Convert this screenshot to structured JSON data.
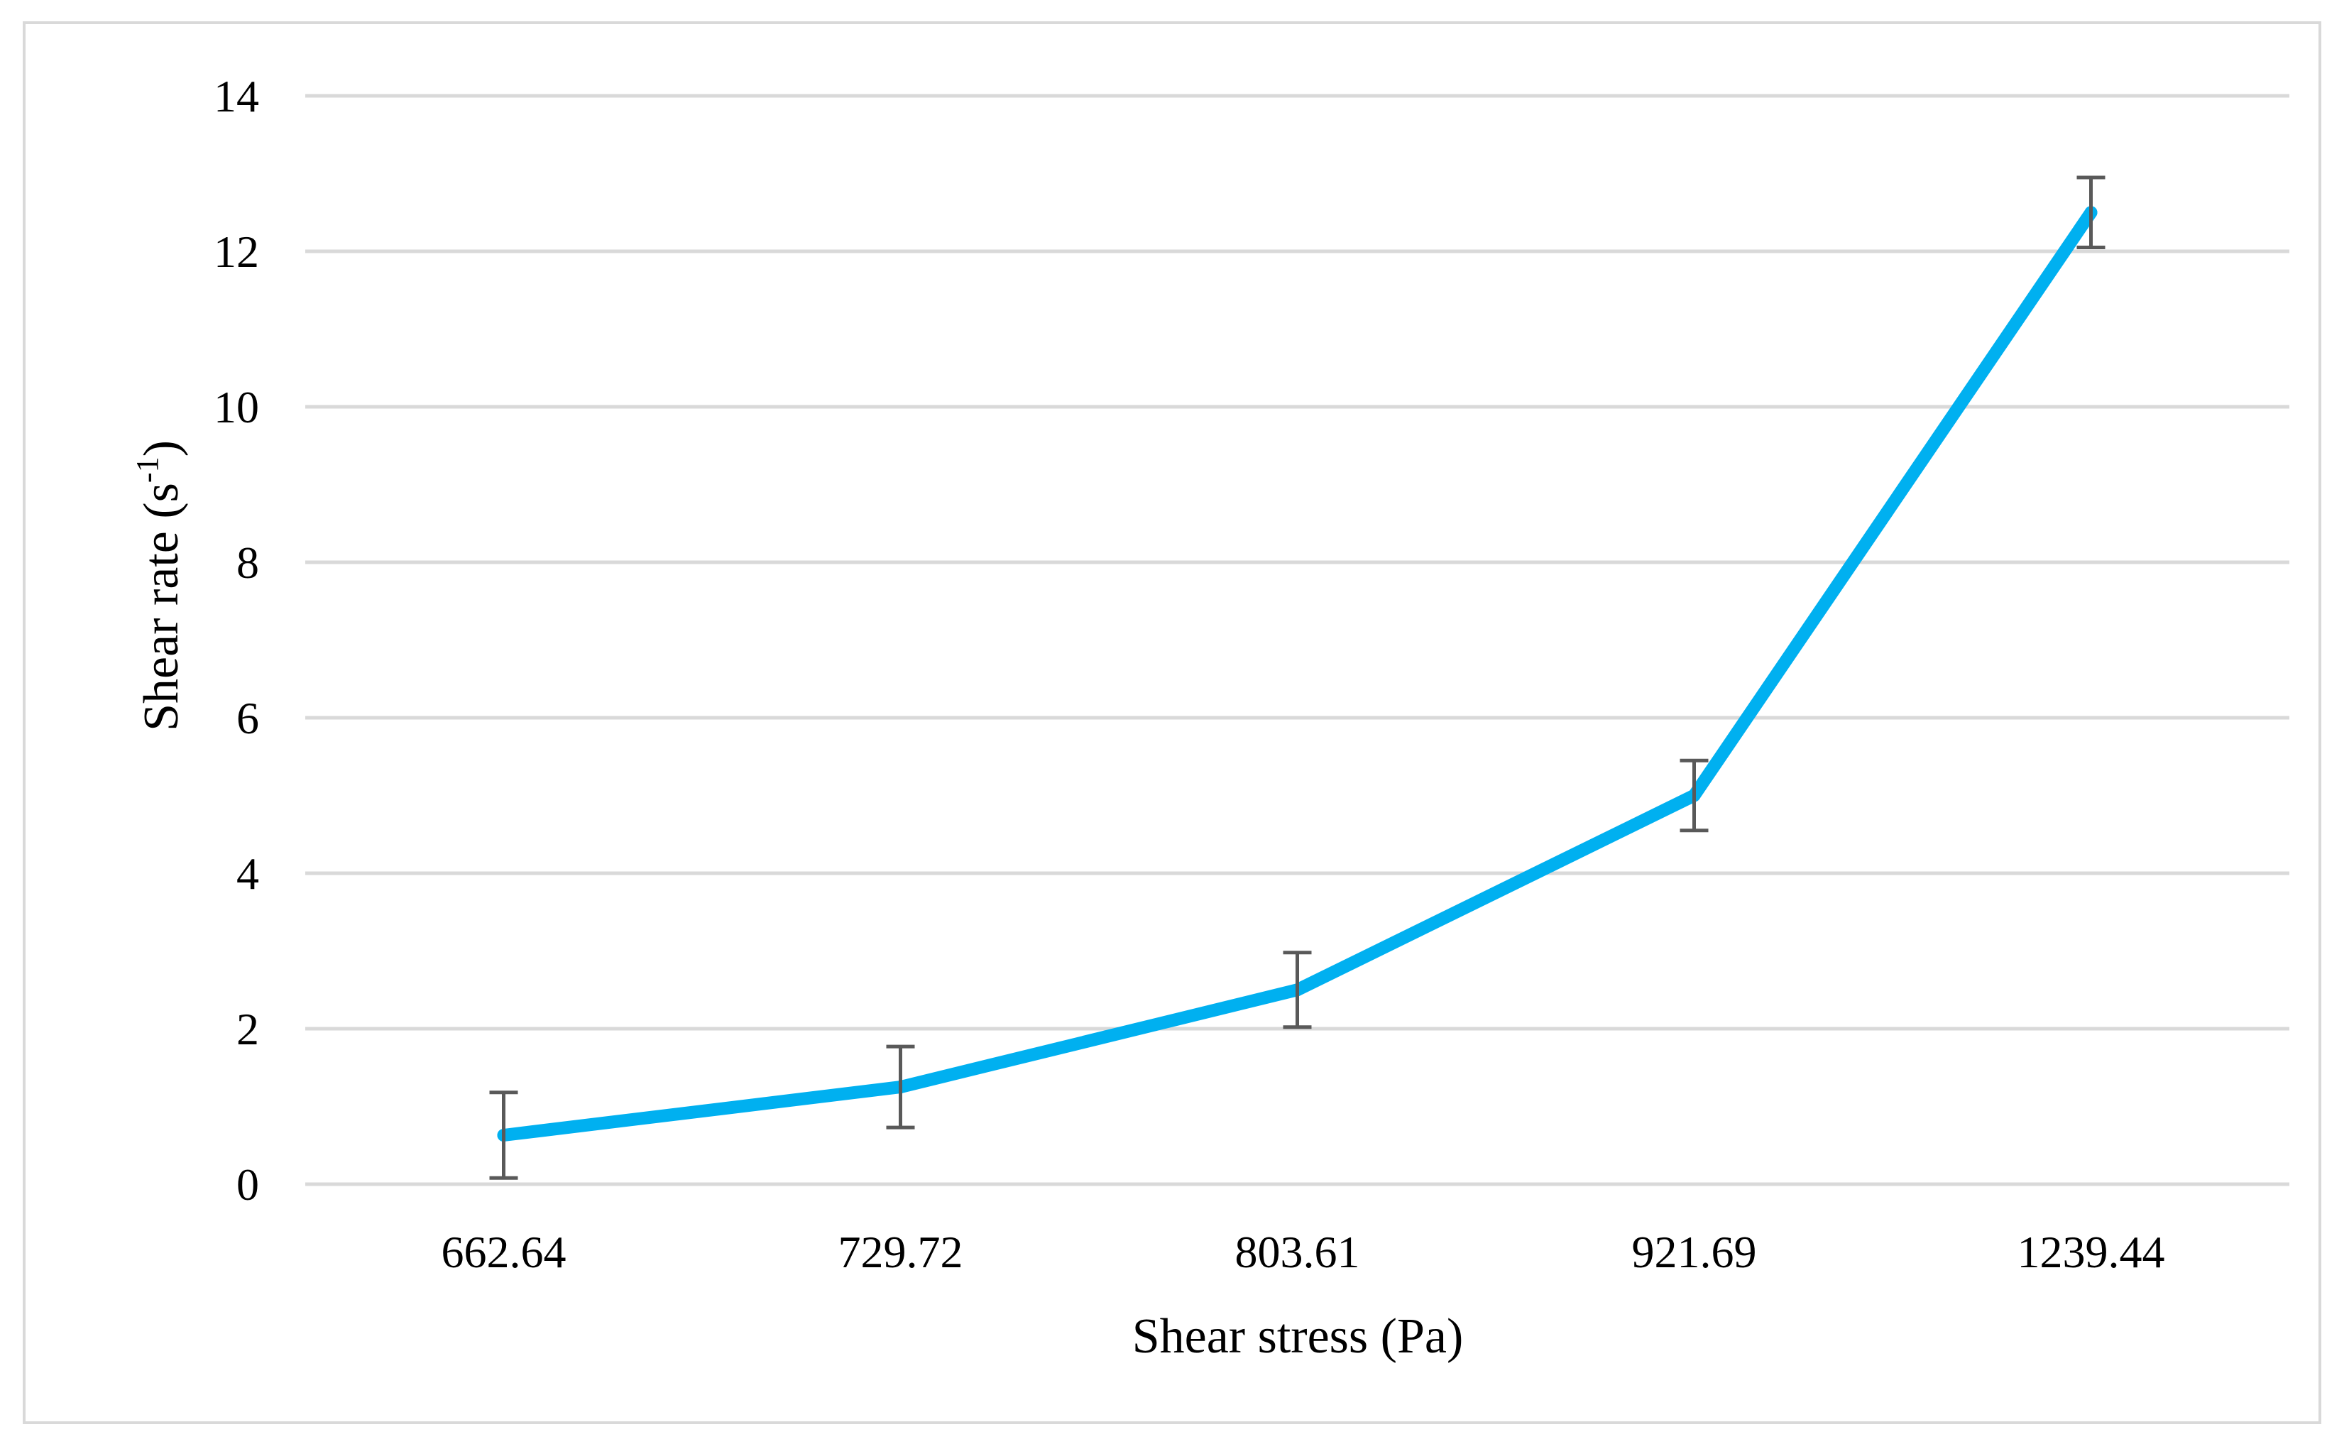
{
  "chart_data": {
    "type": "line",
    "title": "",
    "xlabel": "Shear stress (Pa)",
    "ylabel_prefix": "Shear rate (s",
    "ylabel_superscript_mark": "-1",
    "ylabel_suffix": ")",
    "categories": [
      "662.64",
      "729.72",
      "803.61",
      "921.69",
      "1239.44"
    ],
    "series": [
      {
        "values": [
          0.63,
          1.25,
          2.5,
          5.0,
          12.5
        ],
        "error": [
          0.55,
          0.52,
          0.48,
          0.45,
          0.45
        ],
        "color": "#00b0f0"
      }
    ],
    "ylim": [
      0,
      14
    ],
    "yticks": [
      0,
      2,
      4,
      6,
      8,
      10,
      12,
      14
    ],
    "grid": "horizontal",
    "gridColor": "#d9d9d9",
    "errorBarColor": "#595959",
    "legend": "none"
  }
}
